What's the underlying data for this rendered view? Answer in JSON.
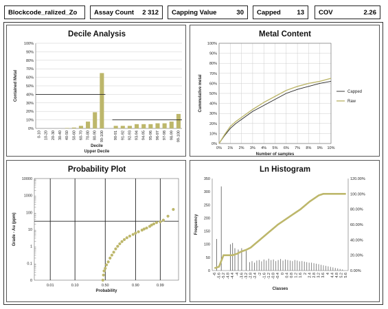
{
  "header": {
    "blockcode_label": "Blockcode_ralized_Zo",
    "assay_count_label": "Assay Count",
    "assay_count_value": "2 312",
    "capping_value_label": "Capping Value",
    "capping_value_value": "30",
    "capped_label": "Capped",
    "capped_value": "13",
    "cov_label": "COV",
    "cov_value": "2.26"
  },
  "colors": {
    "series": "#bdb76b",
    "line": "#222222",
    "grid": "#cccccc"
  },
  "chart_data": [
    {
      "type": "bar",
      "title": "Decile Analysis",
      "xlabel": "Decile",
      "xlabel2": "Upper Decile",
      "ylabel": "Contained Metal",
      "ylim": [
        0,
        100
      ],
      "yticks": [
        "0%",
        "10%",
        "20%",
        "30%",
        "40%",
        "50%",
        "60%",
        "70%",
        "80%",
        "90%",
        "100%"
      ],
      "categories": [
        "0-10",
        "10-20",
        "20-30",
        "30-40",
        "40-50",
        "50-60",
        "60-70",
        "70-80",
        "80-90",
        "90-100",
        "",
        "90-91",
        "91-92",
        "92-93",
        "93-94",
        "94-95",
        "95-96",
        "96-97",
        "97-98",
        "98-99",
        "99-100"
      ],
      "values": [
        0,
        0,
        0,
        0,
        0.5,
        1,
        3,
        8,
        19,
        65,
        null,
        3,
        3,
        3,
        5,
        5,
        5,
        6,
        6,
        8,
        17
      ],
      "reference_lines": [
        {
          "y": 40,
          "from": 0,
          "to": 10
        },
        {
          "y": 10,
          "from": 11,
          "to": 21
        }
      ]
    },
    {
      "type": "line",
      "title": "Metal Content",
      "xlabel": "Number of samples",
      "ylabel": "Cummulative metal",
      "xlim": [
        0,
        10
      ],
      "ylim": [
        0,
        100
      ],
      "xticks": [
        "0%",
        "1%",
        "2%",
        "3%",
        "4%",
        "5%",
        "6%",
        "7%",
        "8%",
        "9%",
        "10%"
      ],
      "yticks": [
        "0%",
        "10%",
        "20%",
        "30%",
        "40%",
        "50%",
        "60%",
        "70%",
        "80%",
        "90%",
        "100%"
      ],
      "legend": "right",
      "series": [
        {
          "name": "Capped",
          "x": [
            0,
            0.5,
            1,
            1.5,
            2,
            3,
            4,
            5,
            6,
            7,
            8,
            9,
            10
          ],
          "values": [
            0,
            8,
            15,
            20,
            24,
            32,
            38,
            44,
            50,
            54,
            57,
            60,
            62
          ]
        },
        {
          "name": "Raw",
          "x": [
            0,
            0.5,
            1,
            1.5,
            2,
            3,
            4,
            5,
            6,
            7,
            8,
            9,
            10
          ],
          "values": [
            0,
            9,
            17,
            22,
            26,
            34,
            41,
            47,
            53,
            57,
            60,
            62,
            65
          ]
        }
      ]
    },
    {
      "type": "scatter",
      "title": "Probability Plot",
      "xlabel": "Probability",
      "ylabel": "Grade - Au (ppm)",
      "scale": "log",
      "yticks": [
        "0",
        "0.1",
        "1",
        "10",
        "100",
        "1000",
        "10000"
      ],
      "xticks": [
        "0.01",
        "0.10",
        "0.50",
        "0.90",
        "0.99"
      ],
      "reference_lines": [
        {
          "axis": "y",
          "value": 30
        }
      ],
      "points": [
        [
          0.46,
          0.01
        ],
        [
          0.47,
          0.02
        ],
        [
          0.48,
          0.035
        ],
        [
          0.5,
          0.05
        ],
        [
          0.52,
          0.08
        ],
        [
          0.55,
          0.12
        ],
        [
          0.58,
          0.2
        ],
        [
          0.61,
          0.3
        ],
        [
          0.64,
          0.45
        ],
        [
          0.67,
          0.7
        ],
        [
          0.7,
          1.0
        ],
        [
          0.73,
          1.4
        ],
        [
          0.76,
          1.9
        ],
        [
          0.79,
          2.5
        ],
        [
          0.82,
          3.2
        ],
        [
          0.85,
          4.0
        ],
        [
          0.88,
          5.0
        ],
        [
          0.9,
          6.0
        ],
        [
          0.92,
          7.2
        ],
        [
          0.94,
          9.0
        ],
        [
          0.95,
          10.5
        ],
        [
          0.96,
          12
        ],
        [
          0.97,
          15
        ],
        [
          0.975,
          18
        ],
        [
          0.98,
          21
        ],
        [
          0.985,
          25
        ],
        [
          0.99,
          28
        ],
        [
          0.993,
          35
        ],
        [
          0.996,
          60
        ],
        [
          0.998,
          150
        ]
      ]
    },
    {
      "type": "bar",
      "title": "Ln Histogram",
      "xlabel": "Classes",
      "ylabel": "Frequency",
      "ylim": [
        0,
        350
      ],
      "yticks": [
        "0",
        "50",
        "100",
        "150",
        "200",
        "250",
        "300",
        "350"
      ],
      "y2ticks": [
        "0.00%",
        "20.00%",
        "40.00%",
        "60.00%",
        "80.00%",
        "100.00%",
        "120.00%"
      ],
      "xticks": [
        "-6",
        "-5.6",
        "-5.2",
        "-4.8",
        "-4.4",
        "-4",
        "-3.6",
        "-3.2",
        "-2.8",
        "-2.4",
        "-2",
        "-1.6",
        "-1.2",
        "-0.8",
        "-0.4",
        "0",
        "0.4",
        "0.8",
        "1.2",
        "1.6",
        "2",
        "2.4",
        "2.8",
        "3.2",
        "3.6",
        "4",
        "4.4",
        "4.8",
        "5.2",
        "5.6"
      ],
      "bars": [
        {
          "x": -5.8,
          "value": 120
        },
        {
          "x": -5.4,
          "value": 320
        },
        {
          "x": -4.6,
          "value": 100
        },
        {
          "x": -4.4,
          "value": 105
        },
        {
          "x": -4.2,
          "value": 85
        },
        {
          "x": -3.9,
          "value": 80
        },
        {
          "x": -3.6,
          "value": 85
        },
        {
          "x": -3.2,
          "value": 75
        }
      ],
      "small_bars": [
        32,
        36,
        30,
        38,
        40,
        35,
        42,
        38,
        45,
        40,
        42,
        36,
        40,
        44,
        38,
        42,
        40,
        38,
        36,
        40,
        38,
        35,
        36,
        34,
        32,
        30,
        30,
        28,
        26,
        24,
        22,
        20,
        18,
        16,
        14,
        12,
        10,
        8,
        6,
        4
      ],
      "cumulative": {
        "x": [
          -6,
          -5.6,
          -5.2,
          -4.8,
          -4.4,
          -4,
          -3.6,
          -3.2,
          -2.8,
          -2.4,
          -2,
          -1.6,
          -1.2,
          -0.8,
          -0.4,
          0,
          0.4,
          0.8,
          1.2,
          1.6,
          2,
          2.4,
          2.8,
          3.2,
          3.6,
          4,
          4.4,
          4.8,
          5.2,
          5.6
        ],
        "values": [
          3,
          5,
          20,
          20,
          20,
          22,
          25,
          27,
          30,
          35,
          40,
          45,
          50,
          55,
          60,
          64,
          68,
          72,
          76,
          80,
          85,
          90,
          94,
          98,
          100,
          100,
          100,
          100,
          100,
          100
        ]
      }
    }
  ]
}
